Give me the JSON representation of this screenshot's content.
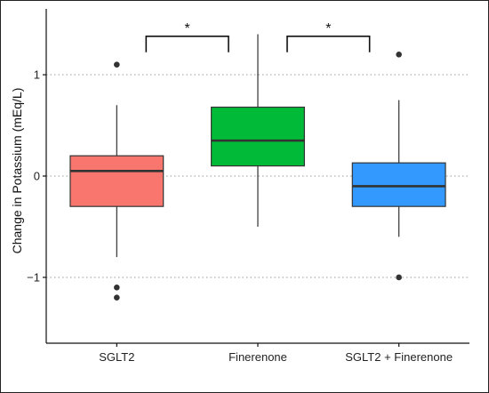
{
  "chart_data": {
    "type": "box",
    "title": "",
    "xlabel": "",
    "ylabel": "Change in Potassium (mEq/L)",
    "ylim": [
      -1.65,
      1.65
    ],
    "yticks": [
      -1,
      0,
      1
    ],
    "ytick_labels": [
      "−1",
      "0",
      "1"
    ],
    "grid": "horizontal-dotted-at-ticks",
    "legend": "none",
    "categories": [
      "SGLT2",
      "Finerenone",
      "SGLT2 + Finerenone"
    ],
    "series": [
      {
        "category": "SGLT2",
        "color": "#F8766D",
        "whisker_low": -0.8,
        "q1": -0.3,
        "median": 0.05,
        "q3": 0.2,
        "whisker_high": 0.7,
        "outliers": [
          1.1,
          -1.1,
          -1.2
        ]
      },
      {
        "category": "Finerenone",
        "color": "#00BA38",
        "whisker_low": -0.5,
        "q1": 0.1,
        "median": 0.35,
        "q3": 0.68,
        "whisker_high": 1.4,
        "outliers": []
      },
      {
        "category": "SGLT2 + Finerenone",
        "color": "#3399FF",
        "whisker_low": -0.6,
        "q1": -0.3,
        "median": -0.1,
        "q3": 0.13,
        "whisker_high": 0.75,
        "outliers": [
          1.2,
          -1.0
        ]
      }
    ],
    "annotations": [
      {
        "from": "SGLT2",
        "to": "Finerenone",
        "label": "*",
        "y": 1.38
      },
      {
        "from": "Finerenone",
        "to": "SGLT2 + Finerenone",
        "label": "*",
        "y": 1.38
      }
    ]
  }
}
